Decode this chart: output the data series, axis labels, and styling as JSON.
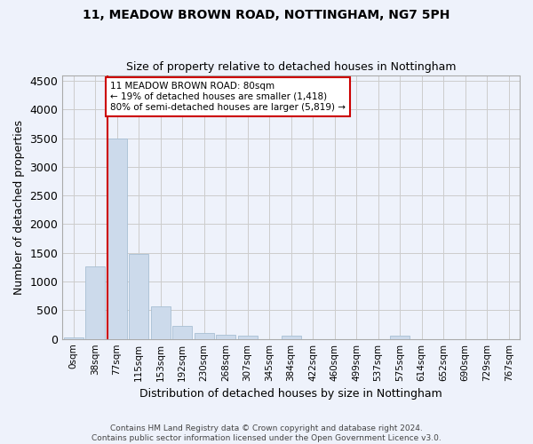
{
  "title": "11, MEADOW BROWN ROAD, NOTTINGHAM, NG7 5PH",
  "subtitle": "Size of property relative to detached houses in Nottingham",
  "xlabel": "Distribution of detached houses by size in Nottingham",
  "ylabel": "Number of detached properties",
  "bar_color": "#ccdaeb",
  "bar_edge_color": "#a8bfd4",
  "background_color": "#eef2fb",
  "grid_color": "#cccccc",
  "tick_labels": [
    "0sqm",
    "38sqm",
    "77sqm",
    "115sqm",
    "153sqm",
    "192sqm",
    "230sqm",
    "268sqm",
    "307sqm",
    "345sqm",
    "384sqm",
    "422sqm",
    "460sqm",
    "499sqm",
    "537sqm",
    "575sqm",
    "614sqm",
    "652sqm",
    "690sqm",
    "729sqm",
    "767sqm"
  ],
  "bar_values": [
    25,
    1270,
    3500,
    1480,
    570,
    235,
    110,
    75,
    50,
    0,
    55,
    0,
    0,
    0,
    0,
    55,
    0,
    0,
    0,
    0,
    0
  ],
  "ylim": [
    0,
    4600
  ],
  "yticks": [
    0,
    500,
    1000,
    1500,
    2000,
    2500,
    3000,
    3500,
    4000,
    4500
  ],
  "vline_x_index": 2,
  "vline_color": "#cc0000",
  "annotation_line1": "11 MEADOW BROWN ROAD: 80sqm",
  "annotation_line2": "← 19% of detached houses are smaller (1,418)",
  "annotation_line3": "80% of semi-detached houses are larger (5,819) →",
  "annotation_box_color": "#ffffff",
  "annotation_box_edge": "#cc0000",
  "footer_text": "Contains HM Land Registry data © Crown copyright and database right 2024.\nContains public sector information licensed under the Open Government Licence v3.0.",
  "figsize": [
    6.0,
    5.0
  ],
  "dpi": 100
}
